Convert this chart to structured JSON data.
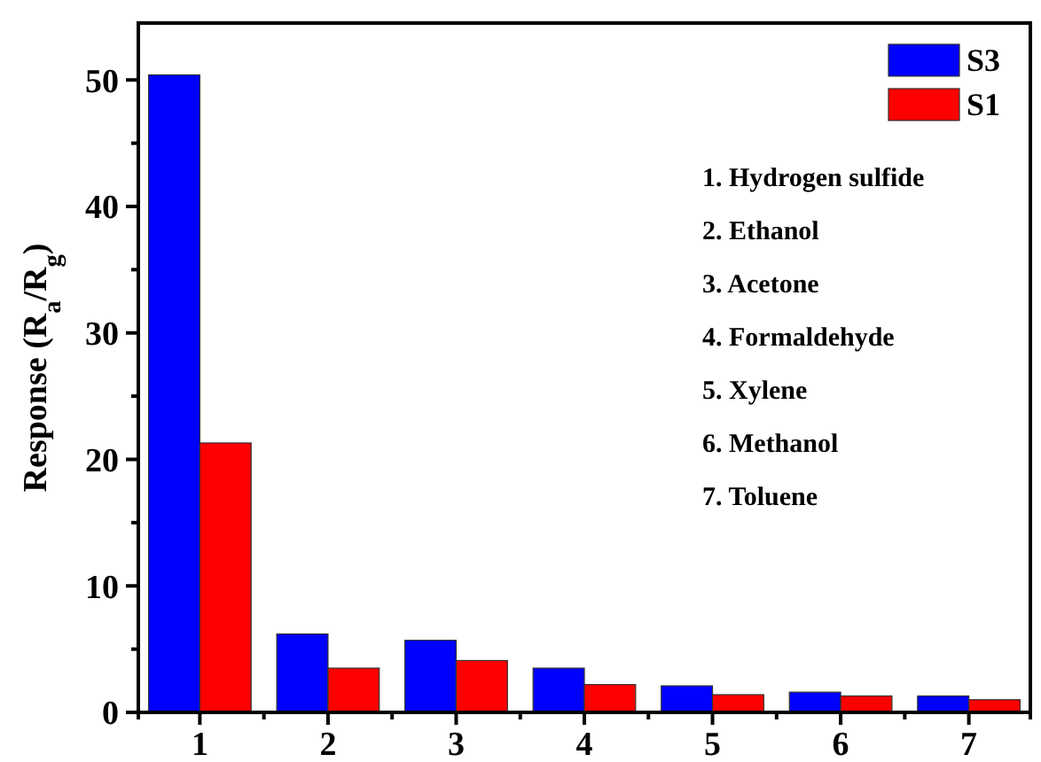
{
  "chart_data": {
    "type": "bar",
    "ylabel": "Response (R$_{a}$/R$_{g}$)",
    "categories": [
      "1",
      "2",
      "3",
      "4",
      "5",
      "6",
      "7"
    ],
    "series": [
      {
        "name": "S3",
        "color": "#0000ff",
        "values": [
          50.4,
          6.2,
          5.7,
          3.5,
          2.1,
          1.6,
          1.3
        ]
      },
      {
        "name": "S1",
        "color": "#ff0000",
        "values": [
          21.3,
          3.5,
          4.1,
          2.2,
          1.4,
          1.3,
          1.0
        ]
      }
    ],
    "ylim": [
      0,
      54.5
    ],
    "yticks": [
      0,
      {
        "value": 5,
        "label": null
      },
      10,
      {
        "value": 15,
        "label": null
      },
      20,
      {
        "value": 25,
        "label": null
      },
      30,
      {
        "value": 35,
        "label": null
      },
      40,
      {
        "value": 45,
        "label": null
      },
      50
    ],
    "legend": "top right",
    "annotations": [
      "1. Hydrogen sulfide",
      "2. Ethanol",
      "3. Acetone",
      "4. Formaldehyde",
      "5. Xylene",
      "6. Methanol",
      "7. Toluene"
    ]
  }
}
